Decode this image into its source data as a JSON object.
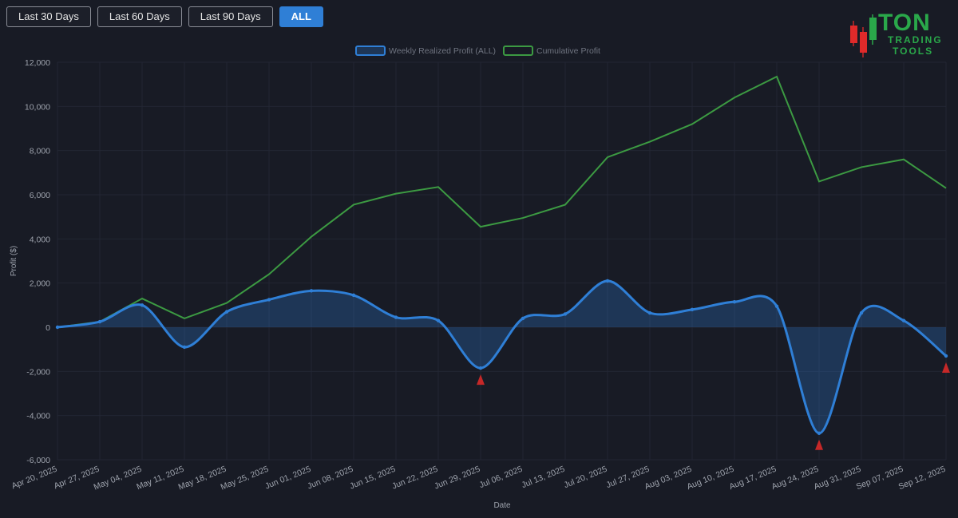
{
  "toolbar": {
    "buttons": [
      {
        "label": "Last 30 Days",
        "active": false
      },
      {
        "label": "Last 60 Days",
        "active": false
      },
      {
        "label": "Last 90 Days",
        "active": false
      },
      {
        "label": "ALL",
        "active": true
      }
    ]
  },
  "logo": {
    "line1": "TON",
    "line2": "TRADING",
    "line3": "TOOLS",
    "icon": "candlestick-icon"
  },
  "colors": {
    "background": "#181b25",
    "weekly": "#2f7fd6",
    "weekly_fill": "rgba(47,127,214,0.28)",
    "cumulative": "#3c9a42",
    "loss_marker": "#c62828",
    "grid": "#222633"
  },
  "chart_data": {
    "type": "line",
    "xlabel": "Date",
    "ylabel": "Profit ($)",
    "ylim": [
      -6000,
      12000
    ],
    "yticks": [
      12000,
      10000,
      8000,
      6000,
      4000,
      2000,
      0,
      -2000,
      -4000,
      -6000
    ],
    "ytick_labels": [
      "12,000",
      "10,000",
      "8,000",
      "6,000",
      "4,000",
      "2,000",
      "0",
      "-2,000",
      "-4,000",
      "-6,000"
    ],
    "categories": [
      "Apr 20, 2025",
      "Apr 27, 2025",
      "May 04, 2025",
      "May 11, 2025",
      "May 18, 2025",
      "May 25, 2025",
      "Jun 01, 2025",
      "Jun 08, 2025",
      "Jun 15, 2025",
      "Jun 22, 2025",
      "Jun 29, 2025",
      "Jul 06, 2025",
      "Jul 13, 2025",
      "Jul 20, 2025",
      "Jul 27, 2025",
      "Aug 03, 2025",
      "Aug 10, 2025",
      "Aug 17, 2025",
      "Aug 24, 2025",
      "Aug 31, 2025",
      "Sep 07, 2025",
      "Sep 12, 2025"
    ],
    "legend_position": "top-center",
    "series": [
      {
        "name": "Weekly Realized Profit (ALL)",
        "style": "smooth-filled",
        "values": [
          0,
          250,
          1000,
          -900,
          700,
          1250,
          1650,
          1450,
          450,
          300,
          -1850,
          400,
          600,
          2100,
          650,
          800,
          1150,
          950,
          -4800,
          650,
          300,
          -1300
        ]
      },
      {
        "name": "Cumulative Profit",
        "style": "straight",
        "values": [
          0,
          250,
          1300,
          400,
          1100,
          2400,
          4100,
          5550,
          6050,
          6350,
          4550,
          4950,
          5550,
          7700,
          8400,
          9200,
          10400,
          11350,
          6600,
          7250,
          7600,
          6300
        ]
      }
    ],
    "loss_markers": [
      {
        "category": "Jun 29, 2025",
        "value": -1850
      },
      {
        "category": "Aug 24, 2025",
        "value": -4800
      },
      {
        "category": "Sep 12, 2025",
        "value": -1300
      }
    ]
  }
}
